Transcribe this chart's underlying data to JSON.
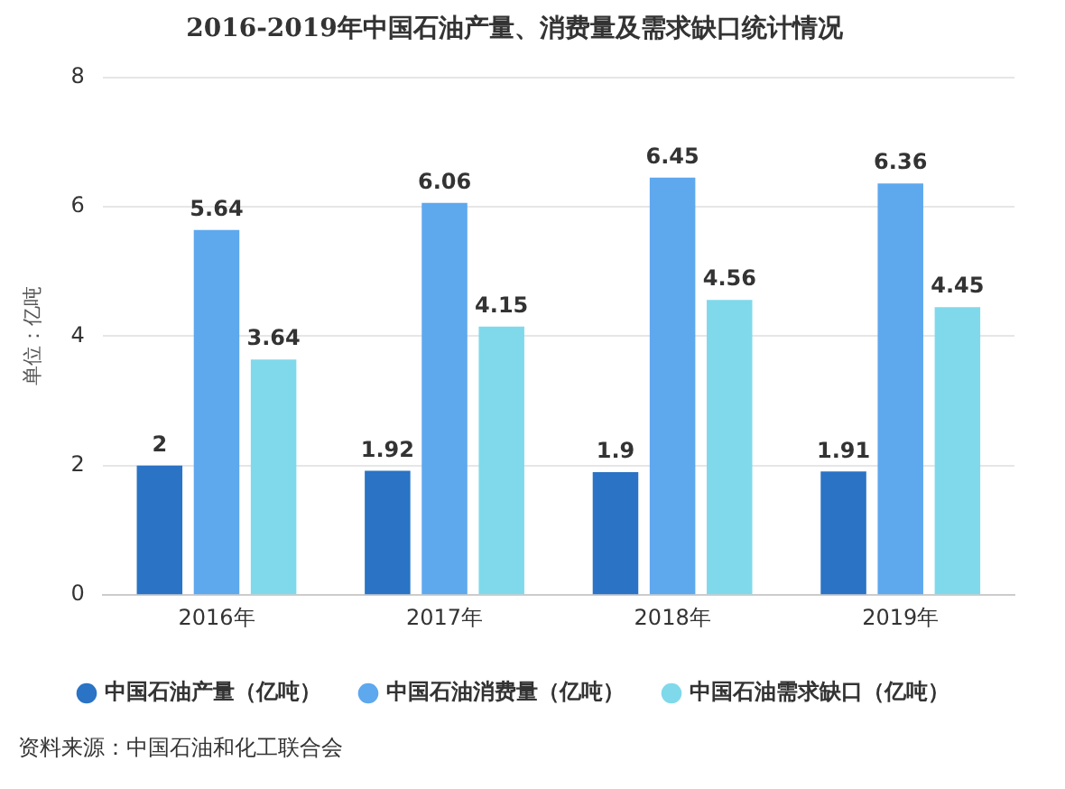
{
  "chart_data": {
    "type": "bar",
    "title": "2016-2019年中国石油产量、消费量及需求缺口统计情况",
    "ylabel": "单位：亿吨",
    "categories": [
      "2016年",
      "2017年",
      "2018年",
      "2019年"
    ],
    "series": [
      {
        "name": "中国石油产量（亿吨）",
        "color": "#2a73c5",
        "values": [
          2,
          1.92,
          1.9,
          1.91
        ]
      },
      {
        "name": "中国石油消费量（亿吨）",
        "color": "#5ea8ee",
        "values": [
          5.64,
          6.06,
          6.45,
          6.36
        ]
      },
      {
        "name": "中国石油需求缺口（亿吨）",
        "color": "#80d9eb",
        "values": [
          3.64,
          4.15,
          4.56,
          4.45
        ]
      }
    ],
    "ylim": [
      0,
      8
    ],
    "yticks": [
      0,
      2,
      4,
      6,
      8
    ],
    "grid": "y",
    "legend": "bottom",
    "data_labels": true,
    "annotations": [
      "资料来源：中国石油和化工联合会"
    ]
  }
}
